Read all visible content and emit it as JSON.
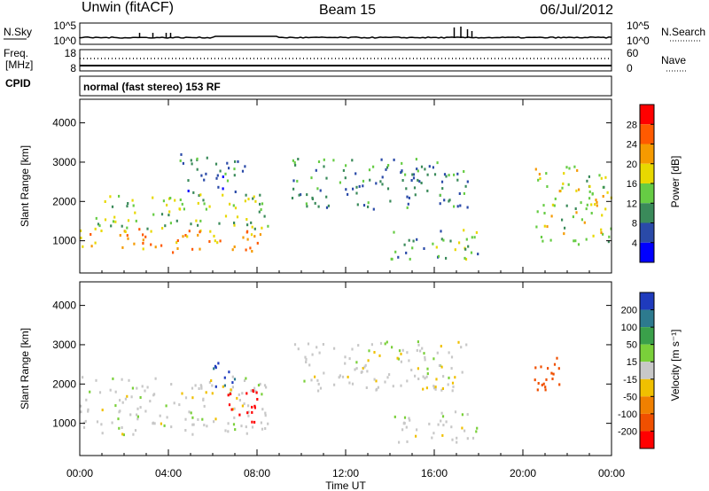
{
  "header": {
    "station": "Unwin (fitACF)",
    "beam": "Beam 15",
    "date": "06/Jul/2012"
  },
  "strip": {
    "nsky_label": "N.Sky",
    "nsky_ticks": [
      "10^5",
      "10^0"
    ],
    "nsearch_label": "N.Search",
    "nsearch_ticks": [
      "10^5",
      "10^0"
    ],
    "freq_label": "Freq.",
    "freq_unit": "[MHz]",
    "freq_ticks": [
      "18",
      "8"
    ],
    "nave_label": "Nave",
    "nave_ticks": [
      "60",
      "0"
    ],
    "cpid_label": "CPID",
    "cpid_text": "normal (fast stereo) 153 RF"
  },
  "axes": {
    "ylabel": "Slant Range [km]",
    "xlabel": "Time UT",
    "y_ticks": [
      "1000",
      "2000",
      "3000",
      "4000"
    ],
    "x_ticks": [
      "00:00",
      "04:00",
      "08:00",
      "12:00",
      "16:00",
      "20:00",
      "00:00"
    ]
  },
  "colorbars": {
    "power": {
      "label": "Power [dB]",
      "ticks": [
        "4",
        "8",
        "12",
        "16",
        "20",
        "24",
        "28"
      ],
      "colors": [
        "#0000ff",
        "#2a4aa8",
        "#3a8a5a",
        "#66cc44",
        "#e8d800",
        "#f59a00",
        "#ff5a00",
        "#ff0000"
      ]
    },
    "velocity": {
      "label": "Velocity [m s⁻¹]",
      "ticks": [
        "200",
        "100",
        "50",
        "15",
        "-15",
        "-50",
        "-100",
        "-200"
      ],
      "colors": [
        "#1f3bbd",
        "#2d7a8e",
        "#3aa04a",
        "#7ad03a",
        "#c8c8c8",
        "#f0c000",
        "#f08000",
        "#f05000",
        "#ff0000"
      ]
    }
  },
  "chart_data": [
    {
      "type": "heatmap",
      "title": "Power",
      "xlabel": "Time UT",
      "ylabel": "Slant Range [km]",
      "xlim": [
        "00:00",
        "24:00"
      ],
      "ylim": [
        180,
        4600
      ],
      "colorbar_label": "Power [dB]",
      "colorbar_range": [
        0,
        32
      ],
      "regions": [
        {
          "t_start": 0.0,
          "t_end": 8.5,
          "range_low": 700,
          "range_high": 1300,
          "value": 22
        },
        {
          "t_start": 0.5,
          "t_end": 8.5,
          "range_low": 1300,
          "range_high": 2200,
          "value": 14
        },
        {
          "t_start": 4.5,
          "t_end": 7.5,
          "range_low": 2200,
          "range_high": 3200,
          "value": 8
        },
        {
          "t_start": 9.5,
          "t_end": 17.5,
          "range_low": 1800,
          "range_high": 3100,
          "value": 10
        },
        {
          "t_start": 14.0,
          "t_end": 18.0,
          "range_low": 500,
          "range_high": 1300,
          "value": 13
        },
        {
          "t_start": 20.5,
          "t_end": 24.0,
          "range_low": 900,
          "range_high": 2900,
          "value": 16
        }
      ]
    },
    {
      "type": "heatmap",
      "title": "Velocity",
      "xlabel": "Time UT",
      "ylabel": "Slant Range [km]",
      "xlim": [
        "00:00",
        "24:00"
      ],
      "ylim": [
        180,
        4600
      ],
      "colorbar_label": "Velocity [m s⁻¹]",
      "colorbar_range": [
        -200,
        200
      ],
      "regions": [
        {
          "t_start": 0.0,
          "t_end": 8.5,
          "range_low": 700,
          "range_high": 2200,
          "value": 0
        },
        {
          "t_start": 6.5,
          "t_end": 8.0,
          "range_low": 900,
          "range_high": 1900,
          "value": -180
        },
        {
          "t_start": 6.0,
          "t_end": 7.0,
          "range_low": 1900,
          "range_high": 2800,
          "value": 150
        },
        {
          "t_start": 9.5,
          "t_end": 17.5,
          "range_low": 1800,
          "range_high": 3100,
          "value": 0
        },
        {
          "t_start": 14.0,
          "t_end": 18.0,
          "range_low": 500,
          "range_high": 1300,
          "value": 0
        },
        {
          "t_start": 20.5,
          "t_end": 22.0,
          "range_low": 1800,
          "range_high": 2900,
          "value": -120
        }
      ]
    }
  ]
}
